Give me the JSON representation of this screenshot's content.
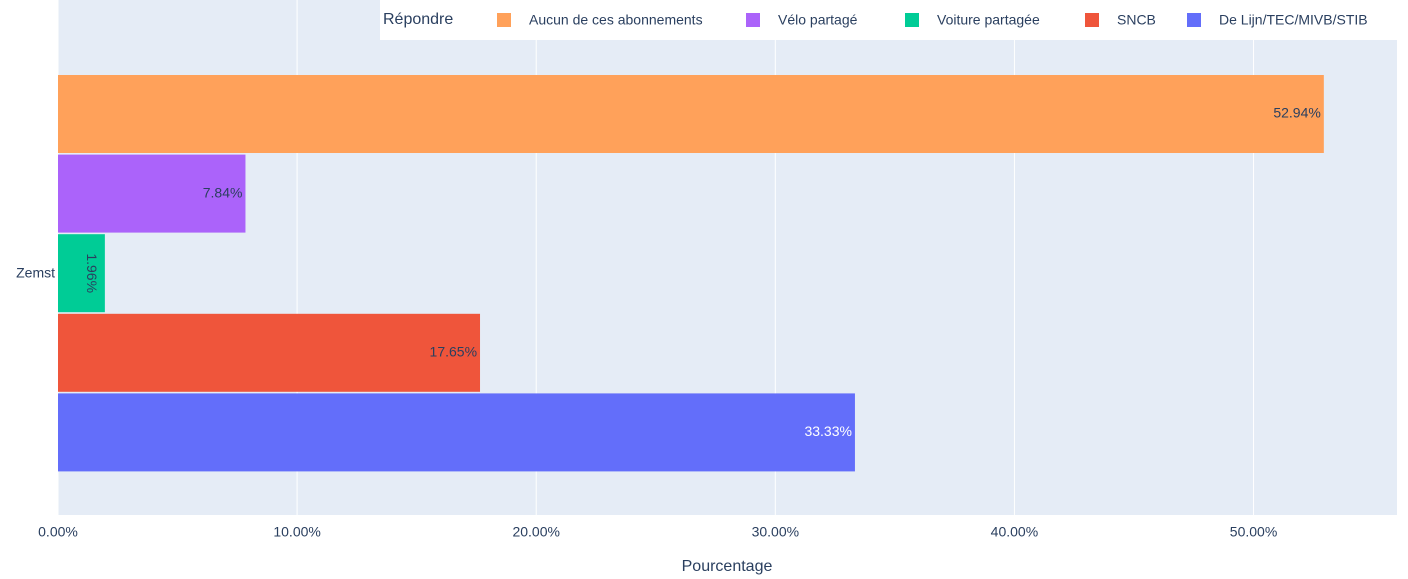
{
  "chart_data": {
    "type": "bar",
    "orientation": "horizontal",
    "categories": [
      "Zemst"
    ],
    "legend_title": "Répondre",
    "x_label": "Pourcentage",
    "series": [
      {
        "name": "Aucun de ces abonnements",
        "color": "#FFA15A",
        "values": [
          52.94
        ],
        "value_labels": [
          "52.94%"
        ]
      },
      {
        "name": "Vélo partagé",
        "color": "#AB63FA",
        "values": [
          7.84
        ],
        "value_labels": [
          "7.84%"
        ]
      },
      {
        "name": "Voiture partagée",
        "color": "#00CC96",
        "values": [
          1.96
        ],
        "value_labels": [
          "1.96%"
        ]
      },
      {
        "name": "SNCB",
        "color": "#EF553B",
        "values": [
          17.65
        ],
        "value_labels": [
          "17.65%"
        ]
      },
      {
        "name": "De Lijn/TEC/MIVB/STIB",
        "color": "#636EFA",
        "values": [
          33.33
        ],
        "value_labels": [
          "33.33%"
        ]
      }
    ],
    "xlim": [
      0,
      56
    ],
    "xticks": [
      {
        "value": 0,
        "label": "0.00%"
      },
      {
        "value": 10,
        "label": "10.00%"
      },
      {
        "value": 20,
        "label": "20.00%"
      },
      {
        "value": 30,
        "label": "30.00%"
      },
      {
        "value": 40,
        "label": "40.00%"
      },
      {
        "value": 50,
        "label": "50.00%"
      }
    ],
    "grid": true,
    "legend": "top-right"
  }
}
